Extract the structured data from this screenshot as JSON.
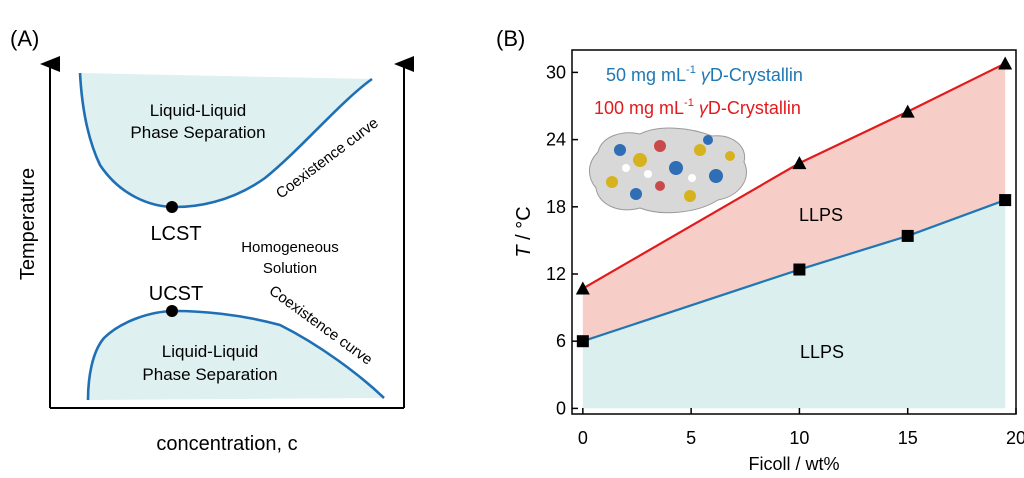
{
  "panel_a": {
    "label": "(A)",
    "ylabel": "Temperature",
    "xlabel": "concentration, c",
    "upper_region_label": [
      "Liquid-Liquid",
      "Phase Separation"
    ],
    "lower_region_label": [
      "Liquid-Liquid",
      "Phase Separation"
    ],
    "lcst_label": "LCST",
    "ucst_label": "UCST",
    "middle_label": [
      "Homogeneous",
      "Solution"
    ],
    "upper_curve_label": "Coexistence curve",
    "lower_curve_label": "Coexistence curve",
    "colors": {
      "curve": "#1f6fb5",
      "fill": "#dff0f1",
      "axis": "#000000"
    }
  },
  "panel_b": {
    "label": "(B)",
    "legend": [
      {
        "prefix": "50 mg mL",
        "sup": "-1",
        "italic": " γ",
        "suffix": "D-Crystallin",
        "color": "#1f77b4"
      },
      {
        "prefix": "100 mg mL",
        "sup": "-1",
        "italic": " γ",
        "suffix": "D-Crystallin",
        "color": "#e31a1c"
      }
    ],
    "region_labels": [
      "LLPS",
      "LLPS"
    ],
    "inset_image": "protein-surface-structure",
    "colors": {
      "upper_fill": "#f7cdc8",
      "lower_fill": "#dcefef"
    }
  },
  "chart_data": {
    "type": "line",
    "xlabel": "Ficoll / wt%",
    "ylabel_italic": "T",
    "ylabel_rest": " / °C",
    "xlim": [
      -0.5,
      20
    ],
    "ylim": [
      -0.5,
      32
    ],
    "xticks": [
      0,
      5,
      10,
      15,
      20
    ],
    "yticks": [
      0,
      6,
      12,
      18,
      24,
      30
    ],
    "series": [
      {
        "name": "50 mg mL-1 γD-Crystallin",
        "color": "#1f77b4",
        "marker": "square",
        "x": [
          0,
          10,
          15,
          19.5
        ],
        "y": [
          6.0,
          12.4,
          15.4,
          18.6
        ]
      },
      {
        "name": "100 mg mL-1 γD-Crystallin",
        "color": "#e31a1c",
        "marker": "triangle",
        "x": [
          0,
          10,
          15,
          19.5
        ],
        "y": [
          10.7,
          21.9,
          26.5,
          30.8
        ]
      }
    ]
  }
}
